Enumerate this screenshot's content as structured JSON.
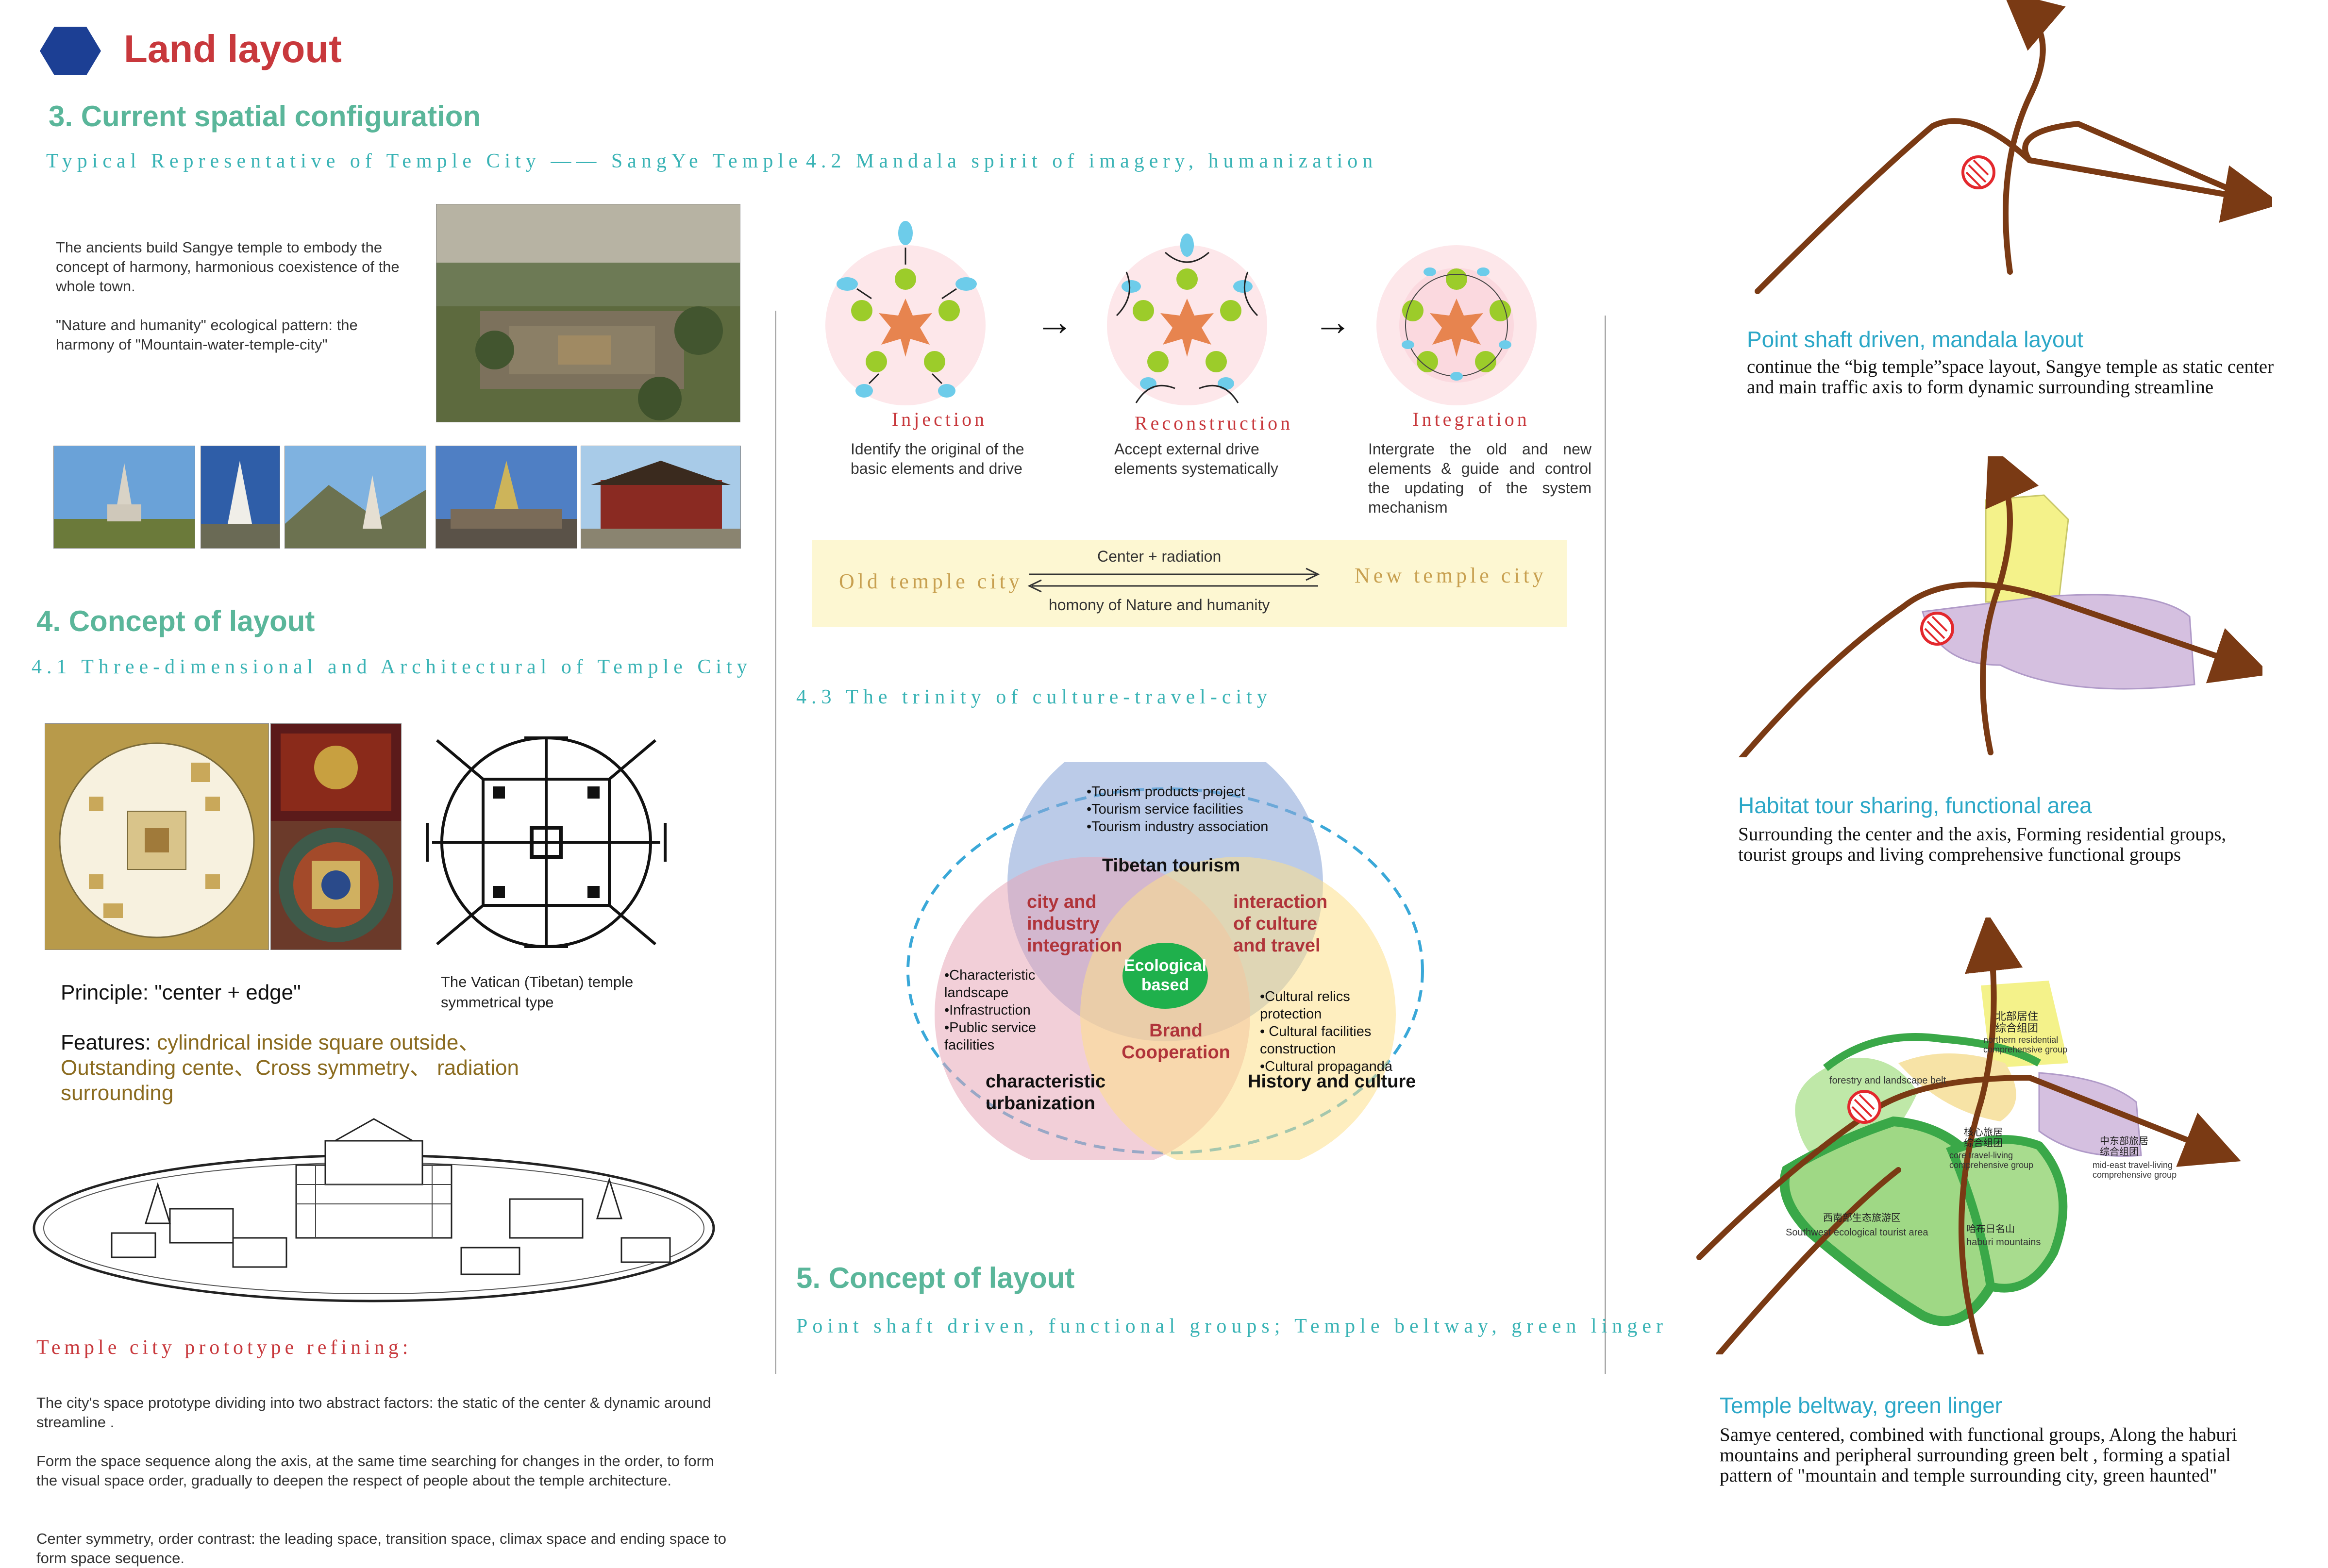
{
  "header": {
    "title": "Land layout"
  },
  "section3": {
    "heading": "3.  Current spatial configuration",
    "subtitle": "Typical Representative of Temple City  —— SangYe Temple",
    "para1": "The ancients build Sangye temple to embody the concept of harmony, harmonious coexistence of the whole town.",
    "para2": "\"Nature and humanity\" ecological pattern: the harmony of \"Mountain-water-temple-city\""
  },
  "section4": {
    "heading": "4.  Concept of layout",
    "subtitle": "4.1 Three-dimensional and Architectural of Temple City",
    "principle": "Principle:  \"center + edge\"",
    "vatican_caption": "The Vatican (Tibetan) temple symmetrical type",
    "features_label": "Features:",
    "features_text": "cylindrical inside square outside、 Outstanding cente、Cross symmetry、 radiation surrounding",
    "prototype_heading": "Temple city prototype refining:",
    "prototype_p1": "The city's space prototype dividing into two abstract factors: the static of the center  & dynamic around streamline .",
    "prototype_p2": "Form the space sequence along the axis, at the same time searching for changes in the order, to form the visual space order, gradually to deepen the respect of people about the temple architecture.",
    "prototype_p3": "Center symmetry, order contrast: the leading space, transition space, climax space and ending space to form  space sequence."
  },
  "section42": {
    "subtitle": "4.2 Mandala spirit of imagery, humanization",
    "steps": [
      {
        "label": "Injection",
        "desc": "Identify the original of the basic elements and drive"
      },
      {
        "label": "Reconstruction",
        "desc": "Accept external drive elements systematically"
      },
      {
        "label": "Integration",
        "desc": "Intergrate the old and new elements & guide and control the updating of the system mechanism"
      }
    ],
    "arrow_glyph": "→",
    "old_city": "Old temple city",
    "new_city": "New temple city",
    "center_radiation": "Center + radiation",
    "homony": "homony of Nature and humanity"
  },
  "section43": {
    "subtitle": "4.3 The trinity of culture-travel-city",
    "top_list": [
      "•Tourism products project",
      "•Tourism service facilities",
      "•Tourism industry association"
    ],
    "tibetan_tourism": "Tibetan tourism",
    "city_industry": [
      "city and",
      "industry",
      "integration"
    ],
    "interaction": [
      "interaction",
      "of culture",
      "and travel"
    ],
    "ecological": [
      "Ecological",
      "based"
    ],
    "left_list": [
      "•Characteristic",
      "landscape",
      "•Infrastruction",
      "•Public service",
      "facilities"
    ],
    "right_list": [
      "•Cultural relics",
      "protection",
      "• Cultural facilities",
      "construction",
      "•Cultural propaganda"
    ],
    "brand": [
      "Brand",
      "Cooperation"
    ],
    "char_urban": [
      "characteristic",
      "urbanization"
    ],
    "history": "History and culture"
  },
  "section5": {
    "heading": "5.  Concept of layout",
    "subtitle": "Point shaft driven, functional groups; Temple beltway, green linger"
  },
  "right_panels": [
    {
      "title": "Point shaft driven, mandala layout",
      "body": "continue the  “big temple”space layout, Sangye temple as static center and main traffic axis to form dynamic surrounding streamline"
    },
    {
      "title": "Habitat tour sharing, functional area",
      "body": "Surrounding the center and the axis, Forming residential groups, tourist groups and living comprehensive functional groups"
    },
    {
      "title": "Temple beltway, green linger",
      "body": "Samye centered, combined with functional groups, Along the haburi mountains and peripheral surrounding green belt , forming a spatial pattern of  \"mountain and temple surrounding city, green haunted\""
    }
  ],
  "map_labels": {
    "north_cn": "北部居住 综合组团",
    "north_en": "northern residential comprehensive group",
    "forestry": "forestry and landscape belt",
    "core_cn": "核心旅居 综合组团",
    "core_en": "core travel-living comprehensive group",
    "mideast_cn": "中东部旅居 综合组团",
    "mideast_en": "mid-east travel-living comprehensive group",
    "southwest_cn": "西南部生态旅游区",
    "southwest_en": "Southwest ecological tourist area",
    "haburi_cn": "哈布日名山",
    "haburi_en": "haburi mountains"
  },
  "colors": {
    "title_red": "#c8383c",
    "teal_heading": "#5ab69a",
    "teal_sub": "#39b3b5",
    "panel_blue": "#2ba7c7",
    "road_brown": "#7a3a14",
    "hexagon_blue": "#1c3f94"
  }
}
